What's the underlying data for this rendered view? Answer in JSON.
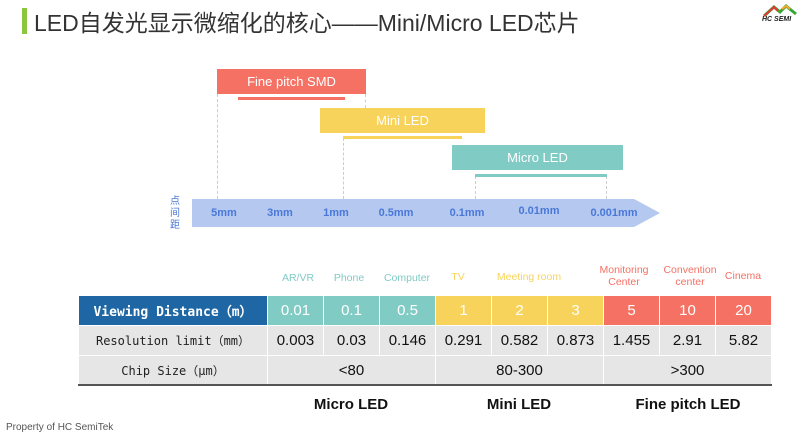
{
  "title": "LED自发光显示微缩化的核心——Mini/Micro LED芯片",
  "logo_text": "HC SEMI",
  "colors": {
    "micro": "#80cbc4",
    "mini": "#f7d35c",
    "fine": "#f47164",
    "header": "#1e67a4",
    "axis": "#b4c8f0"
  },
  "timeline": {
    "axis_label": "点间距",
    "ticks": [
      "5mm",
      "3mm",
      "1mm",
      "0.5mm",
      "0.1mm",
      "0.01mm",
      "0.001mm"
    ],
    "bars": [
      {
        "label": "Fine pitch SMD"
      },
      {
        "label": "Mini LED"
      },
      {
        "label": "Micro LED"
      }
    ]
  },
  "applications": [
    "AR/VR",
    "Phone",
    "Computer",
    "TV",
    "Meeting room",
    "Monitoring Center",
    "Convention center",
    "Cinema"
  ],
  "table": {
    "rows": [
      {
        "label": "Viewing Distance（m）",
        "values": [
          "0.01",
          "0.1",
          "0.5",
          "1",
          "2",
          "3",
          "5",
          "10",
          "20"
        ]
      },
      {
        "label": "Resolution limit（mm）",
        "values": [
          "0.003",
          "0.03",
          "0.146",
          "0.291",
          "0.582",
          "0.873",
          "1.455",
          "2.91",
          "5.82"
        ]
      },
      {
        "label": "Chip Size（μm）",
        "values": [
          "<80",
          "80-300",
          ">300"
        ]
      }
    ]
  },
  "categories": [
    "Micro LED",
    "Mini LED",
    "Fine pitch LED"
  ],
  "footer": "Property of HC SemiTek"
}
